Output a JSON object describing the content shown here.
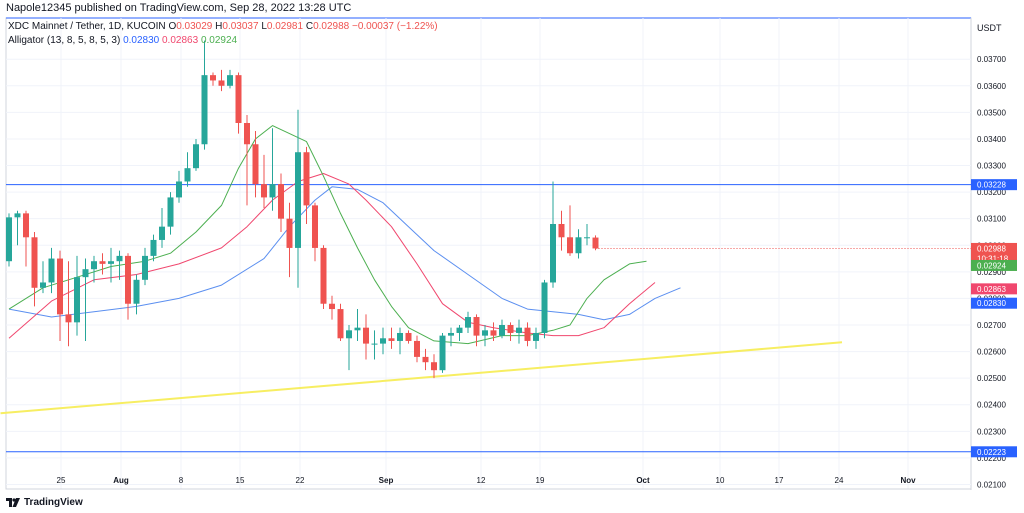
{
  "header": {
    "publisher": "Napole12345 published on TradingView.com, Sep 28, 2022 13:28 UTC"
  },
  "legend": {
    "symbol": "XDC Mainnet / Tether, 1D, KUCOIN",
    "o_label": "O",
    "o": "0.03029",
    "h_label": "H",
    "h": "0.03037",
    "l_label": "L",
    "l": "0.02981",
    "c_label": "C",
    "c": "0.02988",
    "change": "−0.00037 (−1.22%)",
    "indicator": "Alligator (13, 8, 5, 8, 5, 3)",
    "jaw": "0.02830",
    "teeth": "0.02863",
    "lips": "0.02924"
  },
  "footer": {
    "brand": "TradingView"
  },
  "colors": {
    "up": "#26a69a",
    "down": "#ef5350",
    "jaw": "#5b8ff0",
    "teeth": "#f0476e",
    "lips": "#4caf50",
    "trend": "#f7ee62",
    "level": "#2962ff"
  },
  "chart_data": {
    "type": "candlestick",
    "price_axis_label": "USDT",
    "yticks": [
      "0.03700",
      "0.03600",
      "0.03500",
      "0.03400",
      "0.03300",
      "0.03200",
      "0.03100",
      "0.03000",
      "0.02900",
      "0.02800",
      "0.02700",
      "0.02600",
      "0.02500",
      "0.02400",
      "0.02300",
      "0.02200",
      "0.02100"
    ],
    "xticks": [
      "25",
      "Aug",
      "8",
      "15",
      "22",
      "Sep",
      "12",
      "19",
      "Oct",
      "10",
      "17",
      "24",
      "Nov"
    ],
    "ylim": [
      0.02083,
      0.03855
    ],
    "candles": [
      [
        0.0294,
        0.0312,
        0.0292,
        0.03105
      ],
      [
        0.03105,
        0.0313,
        0.03,
        0.0312
      ],
      [
        0.0312,
        0.0313,
        0.0292,
        0.0303
      ],
      [
        0.0303,
        0.0305,
        0.0277,
        0.0284
      ],
      [
        0.0284,
        0.0294,
        0.0282,
        0.0286
      ],
      [
        0.0286,
        0.0299,
        0.0282,
        0.0295
      ],
      [
        0.0295,
        0.0298,
        0.0264,
        0.0274
      ],
      [
        0.0274,
        0.0294,
        0.0262,
        0.0271
      ],
      [
        0.0271,
        0.0296,
        0.0266,
        0.0288
      ],
      [
        0.0288,
        0.0295,
        0.0264,
        0.0291
      ],
      [
        0.0291,
        0.0296,
        0.0286,
        0.0294
      ],
      [
        0.0294,
        0.0297,
        0.0289,
        0.0293
      ],
      [
        0.0293,
        0.0299,
        0.0286,
        0.0294
      ],
      [
        0.0294,
        0.0298,
        0.0287,
        0.0296
      ],
      [
        0.0296,
        0.0297,
        0.0272,
        0.0278
      ],
      [
        0.0278,
        0.0289,
        0.0274,
        0.0287
      ],
      [
        0.0287,
        0.0299,
        0.0285,
        0.0296
      ],
      [
        0.0296,
        0.0304,
        0.0294,
        0.0302
      ],
      [
        0.0302,
        0.0314,
        0.0299,
        0.0307
      ],
      [
        0.0307,
        0.032,
        0.0304,
        0.0318
      ],
      [
        0.0318,
        0.0328,
        0.0316,
        0.0324
      ],
      [
        0.0324,
        0.0335,
        0.0322,
        0.0329
      ],
      [
        0.0329,
        0.034,
        0.0328,
        0.0338
      ],
      [
        0.0338,
        0.0377,
        0.0336,
        0.0364
      ],
      [
        0.0364,
        0.0365,
        0.036,
        0.0362
      ],
      [
        0.0362,
        0.0366,
        0.0358,
        0.036
      ],
      [
        0.036,
        0.0366,
        0.0359,
        0.0364
      ],
      [
        0.0364,
        0.0365,
        0.0342,
        0.0346
      ],
      [
        0.0346,
        0.0349,
        0.0315,
        0.0338
      ],
      [
        0.0338,
        0.0343,
        0.0318,
        0.0323
      ],
      [
        0.0323,
        0.0334,
        0.0314,
        0.0318
      ],
      [
        0.0318,
        0.0344,
        0.0313,
        0.0323
      ],
      [
        0.0323,
        0.0327,
        0.0305,
        0.031
      ],
      [
        0.031,
        0.0316,
        0.0288,
        0.0299
      ],
      [
        0.0299,
        0.0351,
        0.0284,
        0.0335
      ],
      [
        0.0335,
        0.0337,
        0.0308,
        0.0315
      ],
      [
        0.0315,
        0.0316,
        0.0294,
        0.0299
      ],
      [
        0.0299,
        0.03,
        0.0276,
        0.0278
      ],
      [
        0.0278,
        0.0281,
        0.0272,
        0.0276
      ],
      [
        0.0276,
        0.0278,
        0.0264,
        0.0265
      ],
      [
        0.0265,
        0.027,
        0.0253,
        0.0268
      ],
      [
        0.0268,
        0.0276,
        0.0264,
        0.0269
      ],
      [
        0.0269,
        0.0274,
        0.0257,
        0.0263
      ],
      [
        0.0263,
        0.0268,
        0.0257,
        0.0263
      ],
      [
        0.0263,
        0.0269,
        0.0259,
        0.0265
      ],
      [
        0.0265,
        0.0269,
        0.0261,
        0.0264
      ],
      [
        0.0264,
        0.0269,
        0.0259,
        0.0267
      ],
      [
        0.0267,
        0.0268,
        0.0263,
        0.0264
      ],
      [
        0.0264,
        0.0266,
        0.0256,
        0.0258
      ],
      [
        0.0258,
        0.0261,
        0.0253,
        0.0256
      ],
      [
        0.0256,
        0.0259,
        0.025,
        0.0253
      ],
      [
        0.0253,
        0.0267,
        0.0252,
        0.0266
      ],
      [
        0.0266,
        0.0269,
        0.0262,
        0.0267
      ],
      [
        0.0267,
        0.027,
        0.0264,
        0.0269
      ],
      [
        0.0269,
        0.0275,
        0.0267,
        0.0273
      ],
      [
        0.0273,
        0.0274,
        0.0262,
        0.0266
      ],
      [
        0.0266,
        0.027,
        0.0262,
        0.0268
      ],
      [
        0.0268,
        0.0271,
        0.0264,
        0.0266
      ],
      [
        0.0266,
        0.0272,
        0.0265,
        0.027
      ],
      [
        0.027,
        0.0271,
        0.0264,
        0.0267
      ],
      [
        0.0267,
        0.0272,
        0.0263,
        0.0269
      ],
      [
        0.0269,
        0.0271,
        0.0262,
        0.0264
      ],
      [
        0.0264,
        0.0269,
        0.0261,
        0.0267
      ],
      [
        0.0267,
        0.0287,
        0.0265,
        0.0286
      ],
      [
        0.0286,
        0.0324,
        0.0284,
        0.0308
      ],
      [
        0.0308,
        0.0313,
        0.0298,
        0.0303
      ],
      [
        0.0303,
        0.0315,
        0.0296,
        0.0297
      ],
      [
        0.0297,
        0.0306,
        0.0295,
        0.0303
      ],
      [
        0.0303,
        0.0308,
        0.03,
        0.0303
      ],
      [
        0.03029,
        0.03037,
        0.02981,
        0.02988
      ]
    ],
    "alligator": {
      "jaw": [
        [
          0,
          0.0276
        ],
        [
          5,
          0.0273
        ],
        [
          10,
          0.0275
        ],
        [
          15,
          0.0277
        ],
        [
          20,
          0.028
        ],
        [
          25,
          0.0285
        ],
        [
          30,
          0.0295
        ],
        [
          33,
          0.0307
        ],
        [
          36,
          0.0317
        ],
        [
          38,
          0.0322
        ],
        [
          41,
          0.0321
        ],
        [
          44,
          0.0316
        ],
        [
          47,
          0.0307
        ],
        [
          50,
          0.0298
        ],
        [
          54,
          0.0289
        ],
        [
          58,
          0.028
        ],
        [
          61,
          0.0276
        ],
        [
          64,
          0.0275
        ],
        [
          67,
          0.0274
        ],
        [
          70,
          0.0272
        ],
        [
          73,
          0.0274
        ],
        [
          76,
          0.028
        ],
        [
          79,
          0.0284
        ]
      ],
      "teeth": [
        [
          0,
          0.0265
        ],
        [
          5,
          0.0279
        ],
        [
          10,
          0.0287
        ],
        [
          15,
          0.0289
        ],
        [
          20,
          0.0293
        ],
        [
          25,
          0.0299
        ],
        [
          28,
          0.0307
        ],
        [
          31,
          0.0317
        ],
        [
          34,
          0.0324
        ],
        [
          37,
          0.0327
        ],
        [
          40,
          0.0323
        ],
        [
          42,
          0.0317
        ],
        [
          45,
          0.0307
        ],
        [
          48,
          0.0293
        ],
        [
          51,
          0.0278
        ],
        [
          54,
          0.0271
        ],
        [
          57,
          0.0269
        ],
        [
          61,
          0.0267
        ],
        [
          64,
          0.0266
        ],
        [
          67,
          0.0266
        ],
        [
          70,
          0.0269
        ],
        [
          73,
          0.0278
        ],
        [
          76,
          0.0286
        ]
      ],
      "lips": [
        [
          0,
          0.0276
        ],
        [
          4,
          0.0284
        ],
        [
          8,
          0.0288
        ],
        [
          12,
          0.0292
        ],
        [
          16,
          0.0294
        ],
        [
          19,
          0.0297
        ],
        [
          22,
          0.0305
        ],
        [
          25,
          0.0315
        ],
        [
          27,
          0.0329
        ],
        [
          29,
          0.034
        ],
        [
          31,
          0.0345
        ],
        [
          33,
          0.0342
        ],
        [
          35,
          0.0339
        ],
        [
          37,
          0.0326
        ],
        [
          39,
          0.0312
        ],
        [
          41,
          0.0299
        ],
        [
          43,
          0.0287
        ],
        [
          45,
          0.0277
        ],
        [
          47,
          0.0269
        ],
        [
          50,
          0.0264
        ],
        [
          54,
          0.0263
        ],
        [
          58,
          0.0266
        ],
        [
          61,
          0.0266
        ],
        [
          64,
          0.0268
        ],
        [
          66,
          0.027
        ],
        [
          68,
          0.028
        ],
        [
          70,
          0.0287
        ],
        [
          73,
          0.0293
        ],
        [
          75,
          0.0294
        ]
      ]
    },
    "levels": [
      {
        "price": 0.03228,
        "label": "0.03228",
        "color": "#2962ff"
      },
      {
        "price": 0.02223,
        "label": "0.02223",
        "color": "#2962ff"
      }
    ],
    "labels": [
      {
        "label": "0.02988",
        "time": "10:31:18",
        "color": "#ef5350",
        "price": 0.02988
      },
      {
        "label": "0.02924",
        "color": "#4caf50",
        "price": 0.02924
      },
      {
        "label": "0.02863",
        "color": "#f0476e",
        "price": 0.02863
      },
      {
        "label": "0.02830",
        "color": "#2962ff",
        "price": 0.0283
      }
    ],
    "trendline": {
      "from": [
        -1,
        0.02368
      ],
      "to": [
        98,
        0.02635
      ]
    },
    "last_price": 0.02988
  }
}
